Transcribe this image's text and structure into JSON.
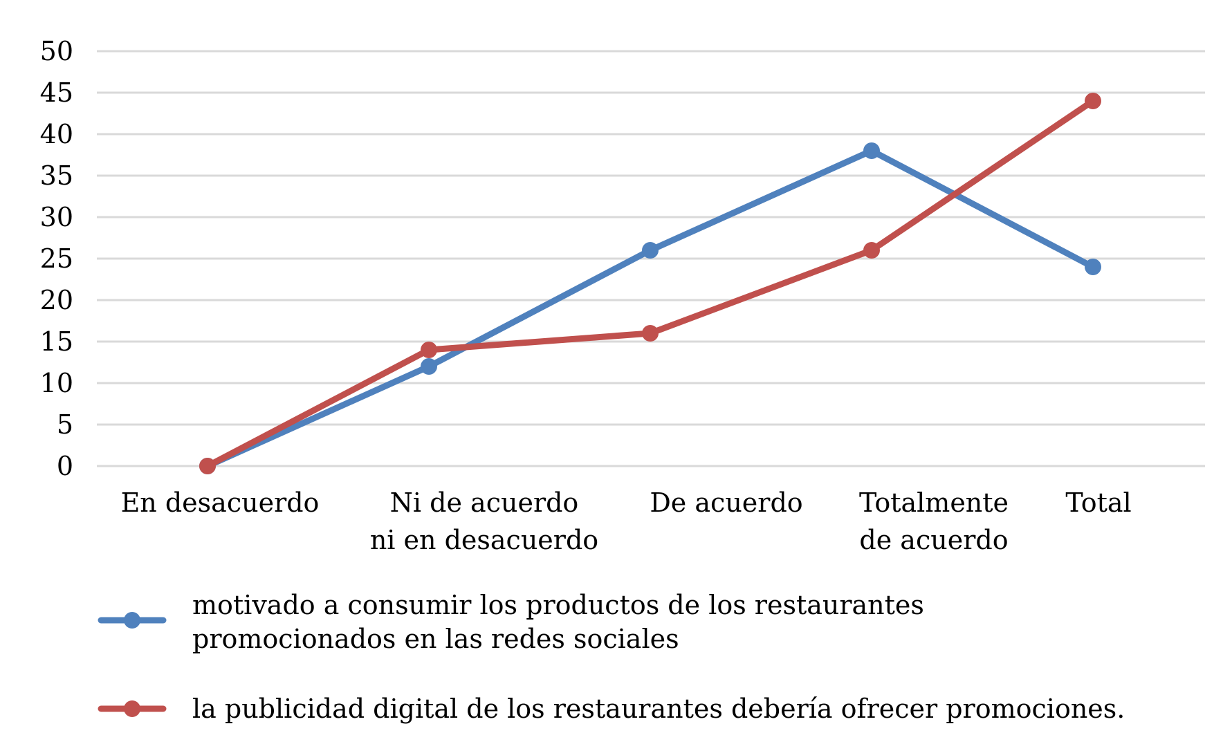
{
  "chart_data": {
    "type": "line",
    "categories": [
      [
        "En desacuerdo"
      ],
      [
        "Ni de acuerdo",
        "ni en desacuerdo"
      ],
      [
        "De acuerdo"
      ],
      [
        "Totalmente",
        "de acuerdo"
      ],
      [
        "Total"
      ]
    ],
    "y_ticks": [
      "0",
      "5",
      "10",
      "15",
      "20",
      "25",
      "30",
      "35",
      "40",
      "45",
      "50"
    ],
    "ylim": [
      0,
      50
    ],
    "grid": true,
    "legend_position": "bottom",
    "series": [
      {
        "name": "motivado a consumir los productos de los restaurantes promocionados en las redes sociales",
        "name_lines": [
          "motivado a consumir los productos de los restaurantes",
          "promocionados en las redes sociales"
        ],
        "color": "#4f81bd",
        "values": [
          0,
          12,
          26,
          38,
          24
        ]
      },
      {
        "name": "la publicidad digital de los restaurantes debería ofrecer  promociones.",
        "name_lines": [
          "la publicidad digital de los restaurantes debería ofrecer  promociones."
        ],
        "color": "#c0504d",
        "values": [
          0,
          14,
          16,
          26,
          44
        ]
      }
    ]
  }
}
